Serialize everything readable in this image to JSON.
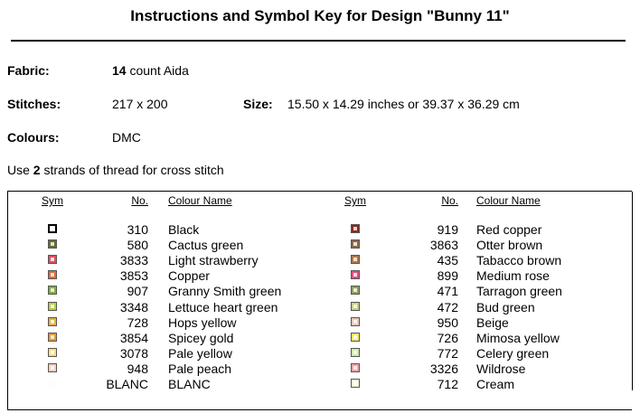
{
  "header": {
    "title": "Instructions and Symbol Key for Design \"Bunny 11\""
  },
  "fabric": {
    "label": "Fabric:",
    "count": "14",
    "rest": "count Aida"
  },
  "stitches": {
    "label": "Stitches:",
    "value": "217 x 200"
  },
  "size": {
    "label": "Size:",
    "value": "15.50 x 14.29 inches or 39.37 x 36.29 cm"
  },
  "colours": {
    "label": "Colours:",
    "value": "DMC"
  },
  "instruction": {
    "pre": "Use",
    "strands": "2",
    "post": "strands of thread for cross stitch"
  },
  "table": {
    "headers": {
      "sym": "Sym",
      "no": "No.",
      "name": "Colour Name"
    },
    "columns": [
      [
        {
          "swatch": "#ffffff",
          "no": "310",
          "name": "Black"
        },
        {
          "swatch": "#6b6b2f",
          "no": "580",
          "name": "Cactus green"
        },
        {
          "swatch": "#e05060",
          "no": "3833",
          "name": "Light strawberry"
        },
        {
          "swatch": "#e46a3a",
          "no": "3853",
          "name": "Copper"
        },
        {
          "swatch": "#7fb03a",
          "no": "907",
          "name": "Granny Smith green"
        },
        {
          "swatch": "#b8d040",
          "no": "3348",
          "name": "Lettuce heart green"
        },
        {
          "swatch": "#e8b040",
          "no": "728",
          "name": "Hops yellow"
        },
        {
          "swatch": "#e89838",
          "no": "3854",
          "name": "Spicey gold"
        },
        {
          "swatch": "#f8e080",
          "no": "3078",
          "name": "Pale yellow"
        },
        {
          "swatch": "#f8d0c0",
          "no": "948",
          "name": "Pale peach"
        },
        {
          "swatch": "#fdfdfd",
          "no": "BLANC",
          "name": "BLANC"
        }
      ],
      [
        {
          "swatch": "#8a2a1e",
          "no": "919",
          "name": "Red copper"
        },
        {
          "swatch": "#8a6a4a",
          "no": "3863",
          "name": "Otter brown"
        },
        {
          "swatch": "#b0784a",
          "no": "435",
          "name": "Tabacco brown"
        },
        {
          "swatch": "#e05080",
          "no": "899",
          "name": "Medium rose"
        },
        {
          "swatch": "#90a060",
          "no": "471",
          "name": "Tarragon green"
        },
        {
          "swatch": "#c8d088",
          "no": "472",
          "name": "Bud green"
        },
        {
          "swatch": "#e8c8b8",
          "no": "950",
          "name": "Beige"
        },
        {
          "swatch": "#f8e868",
          "no": "726",
          "name": "Mimosa yellow"
        },
        {
          "swatch": "#d0e8b0",
          "no": "772",
          "name": "Celery green"
        },
        {
          "swatch": "#f8a0a8",
          "no": "3326",
          "name": "Wildrose"
        },
        {
          "swatch": "#fff8d8",
          "no": "712",
          "name": "Cream"
        }
      ]
    ]
  }
}
